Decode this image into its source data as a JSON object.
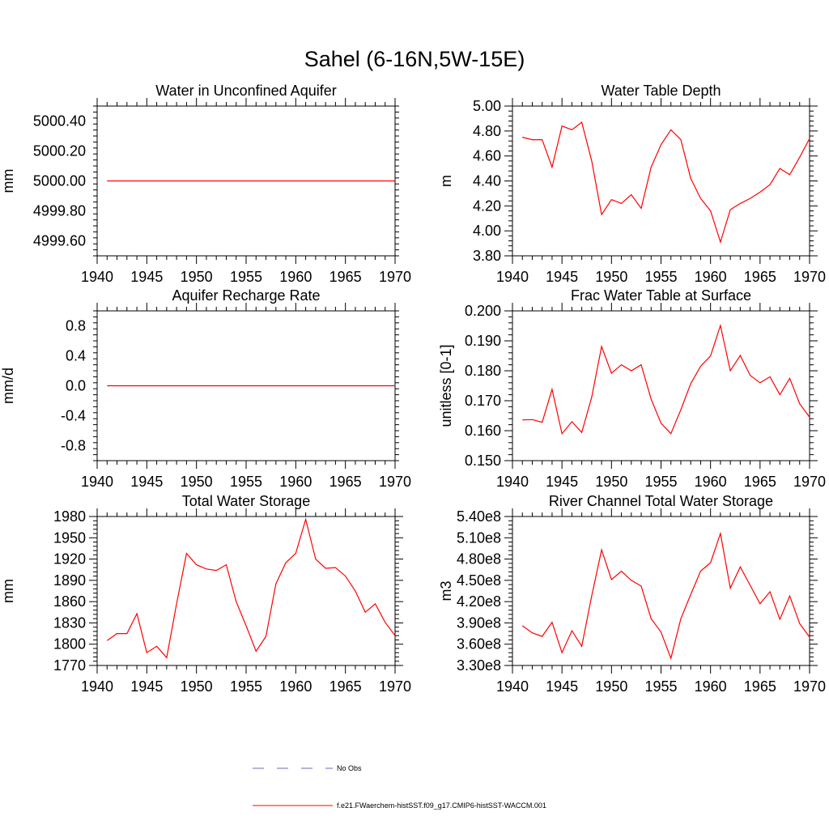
{
  "title": "Sahel (6-16N,5W-15E)",
  "colors": {
    "model": "#ff0000",
    "obs": "#6b6bb6",
    "axis": "#000000"
  },
  "legend": {
    "obs_label": "No Obs",
    "model_label": "f.e21.FWaerchem-histSST.f09_g17.CMIP6-histSST-WACCM.001"
  },
  "chart_data": [
    {
      "type": "line",
      "title": "Water in Unconfined Aquifer",
      "ylabel": "mm",
      "xlim": [
        1940,
        1970
      ],
      "ylim": [
        4999.5,
        5000.5
      ],
      "xticks": [
        1940,
        1945,
        1950,
        1955,
        1960,
        1965,
        1970
      ],
      "yticks": [
        "4999.60",
        "4999.80",
        "5000.00",
        "5000.20",
        "5000.40"
      ],
      "ytick_values": [
        4999.6,
        4999.8,
        5000.0,
        5000.2,
        5000.4
      ],
      "series": [
        {
          "x": [
            1941,
            1970
          ],
          "values": [
            5000.0,
            5000.0
          ]
        }
      ]
    },
    {
      "type": "line",
      "title": "Water Table Depth",
      "ylabel": "m",
      "xlim": [
        1940,
        1970
      ],
      "ylim": [
        3.8,
        5.0
      ],
      "xticks": [
        1940,
        1945,
        1950,
        1955,
        1960,
        1965,
        1970
      ],
      "yticks": [
        "3.80",
        "4.00",
        "4.20",
        "4.40",
        "4.60",
        "4.80",
        "5.00"
      ],
      "ytick_values": [
        3.8,
        4.0,
        4.2,
        4.4,
        4.6,
        4.8,
        5.0
      ],
      "series": [
        {
          "x": [
            1941,
            1942,
            1943,
            1944,
            1945,
            1946,
            1947,
            1948,
            1949,
            1950,
            1951,
            1952,
            1953,
            1954,
            1955,
            1956,
            1957,
            1958,
            1959,
            1960,
            1961,
            1962,
            1963,
            1964,
            1965,
            1966,
            1967,
            1968,
            1969,
            1970
          ],
          "values": [
            4.75,
            4.73,
            4.73,
            4.51,
            4.84,
            4.81,
            4.87,
            4.56,
            4.13,
            4.25,
            4.22,
            4.29,
            4.18,
            4.51,
            4.69,
            4.81,
            4.73,
            4.42,
            4.26,
            4.16,
            3.91,
            4.17,
            4.22,
            4.26,
            4.31,
            4.37,
            4.5,
            4.45,
            4.59,
            4.74
          ]
        }
      ]
    },
    {
      "type": "line",
      "title": "Aquifer Recharge Rate",
      "ylabel": "mm/d",
      "xlim": [
        1940,
        1970
      ],
      "ylim": [
        -1.0,
        1.0
      ],
      "xticks": [
        1940,
        1945,
        1950,
        1955,
        1960,
        1965,
        1970
      ],
      "yticks": [
        "-0.8",
        "-0.4",
        "0.0",
        "0.4",
        "0.8"
      ],
      "ytick_values": [
        -0.8,
        -0.4,
        0.0,
        0.4,
        0.8
      ],
      "series": [
        {
          "x": [
            1941,
            1970
          ],
          "values": [
            0.0,
            0.0
          ]
        }
      ]
    },
    {
      "type": "line",
      "title": "Frac Water Table at Surface",
      "ylabel": "unitless [0-1]",
      "xlim": [
        1940,
        1970
      ],
      "ylim": [
        0.15,
        0.2
      ],
      "xticks": [
        1940,
        1945,
        1950,
        1955,
        1960,
        1965,
        1970
      ],
      "yticks": [
        "0.150",
        "0.160",
        "0.170",
        "0.180",
        "0.190",
        "0.200"
      ],
      "ytick_values": [
        0.15,
        0.16,
        0.17,
        0.18,
        0.19,
        0.2
      ],
      "series": [
        {
          "x": [
            1941,
            1942,
            1943,
            1944,
            1945,
            1946,
            1947,
            1948,
            1949,
            1950,
            1951,
            1952,
            1953,
            1954,
            1955,
            1956,
            1957,
            1958,
            1959,
            1960,
            1961,
            1962,
            1963,
            1964,
            1965,
            1966,
            1967,
            1968,
            1969,
            1970
          ],
          "values": [
            0.1636,
            0.1637,
            0.1628,
            0.1738,
            0.159,
            0.163,
            0.1594,
            0.1712,
            0.1881,
            0.1792,
            0.182,
            0.18,
            0.182,
            0.1705,
            0.1625,
            0.159,
            0.167,
            0.1757,
            0.1815,
            0.185,
            0.1951,
            0.18,
            0.1851,
            0.1785,
            0.176,
            0.178,
            0.172,
            0.1775,
            0.169,
            0.1645
          ]
        }
      ]
    },
    {
      "type": "line",
      "title": "Total Water Storage",
      "ylabel": "mm",
      "xlim": [
        1940,
        1970
      ],
      "ylim": [
        1770,
        1980
      ],
      "xticks": [
        1940,
        1945,
        1950,
        1955,
        1960,
        1965,
        1970
      ],
      "yticks": [
        "1770",
        "1800",
        "1830",
        "1860",
        "1890",
        "1920",
        "1950",
        "1980"
      ],
      "ytick_values": [
        1770,
        1800,
        1830,
        1860,
        1890,
        1920,
        1950,
        1980
      ],
      "series": [
        {
          "x": [
            1941,
            1942,
            1943,
            1944,
            1945,
            1946,
            1947,
            1948,
            1949,
            1950,
            1951,
            1952,
            1953,
            1954,
            1955,
            1956,
            1957,
            1958,
            1959,
            1960,
            1961,
            1962,
            1963,
            1964,
            1965,
            1966,
            1967,
            1968,
            1969,
            1970
          ],
          "values": [
            1805,
            1815,
            1815,
            1843,
            1788,
            1797,
            1781,
            1857,
            1928,
            1912,
            1906,
            1904,
            1912,
            1860,
            1826,
            1790,
            1811,
            1885,
            1915,
            1928,
            1976,
            1920,
            1907,
            1908,
            1896,
            1875,
            1845,
            1857,
            1831,
            1812
          ]
        }
      ]
    },
    {
      "type": "line",
      "title": "River Channel Total Water Storage",
      "ylabel": "m3",
      "xlim": [
        1940,
        1970
      ],
      "ylim": [
        330000000.0,
        540000000.0
      ],
      "xticks": [
        1940,
        1945,
        1950,
        1955,
        1960,
        1965,
        1970
      ],
      "yticks": [
        "3.30e8",
        "3.60e8",
        "3.90e8",
        "4.20e8",
        "4.50e8",
        "4.80e8",
        "5.10e8",
        "5.40e8"
      ],
      "ytick_values": [
        330000000.0,
        360000000.0,
        390000000.0,
        420000000.0,
        450000000.0,
        480000000.0,
        510000000.0,
        540000000.0
      ],
      "series": [
        {
          "x": [
            1941,
            1942,
            1943,
            1944,
            1945,
            1946,
            1947,
            1948,
            1949,
            1950,
            1951,
            1952,
            1953,
            1954,
            1955,
            1956,
            1957,
            1958,
            1959,
            1960,
            1961,
            1962,
            1963,
            1964,
            1965,
            1966,
            1967,
            1968,
            1969,
            1970
          ],
          "values": [
            386000000.0,
            376000000.0,
            371000000.0,
            391000000.0,
            348000000.0,
            379000000.0,
            357000000.0,
            428000000.0,
            493000000.0,
            451000000.0,
            463000000.0,
            450000000.0,
            442000000.0,
            396000000.0,
            377000000.0,
            340000000.0,
            396000000.0,
            430000000.0,
            463000000.0,
            475000000.0,
            516000000.0,
            439000000.0,
            469000000.0,
            443000000.0,
            417000000.0,
            434000000.0,
            395000000.0,
            428000000.0,
            389000000.0,
            370000000.0
          ]
        }
      ]
    }
  ]
}
